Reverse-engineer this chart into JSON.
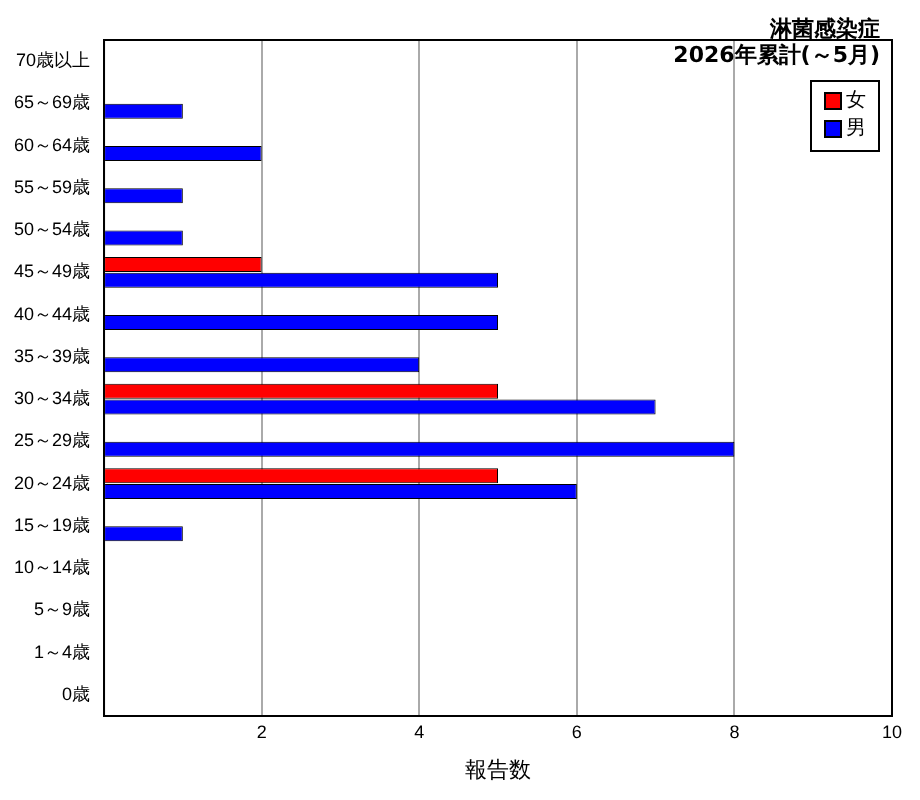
{
  "chart_data": {
    "type": "bar",
    "orientation": "horizontal",
    "title": "淋菌感染症",
    "subtitle": "2026年累計(～5月)",
    "xlabel": "報告数",
    "categories": [
      "70歳以上",
      "65～69歳",
      "60～64歳",
      "55～59歳",
      "50～54歳",
      "45～49歳",
      "40～44歳",
      "35～39歳",
      "30～34歳",
      "25～29歳",
      "20～24歳",
      "15～19歳",
      "10～14歳",
      "5～9歳",
      "1～4歳",
      "0歳"
    ],
    "series": [
      {
        "name": "女",
        "color": "#ff0000",
        "values": [
          0,
          0,
          0,
          0,
          0,
          2,
          0,
          0,
          5,
          0,
          5,
          0,
          0,
          0,
          0,
          0
        ]
      },
      {
        "name": "男",
        "color": "#0000ff",
        "values": [
          0,
          1,
          2,
          1,
          1,
          5,
          5,
          4,
          7,
          8,
          6,
          1,
          0,
          0,
          0,
          0
        ]
      }
    ],
    "xlim": [
      0,
      10
    ],
    "xticks": [
      {
        "value": 0,
        "label": null
      },
      2,
      4,
      6,
      8,
      10
    ],
    "grid": "x",
    "legend": "top right"
  }
}
